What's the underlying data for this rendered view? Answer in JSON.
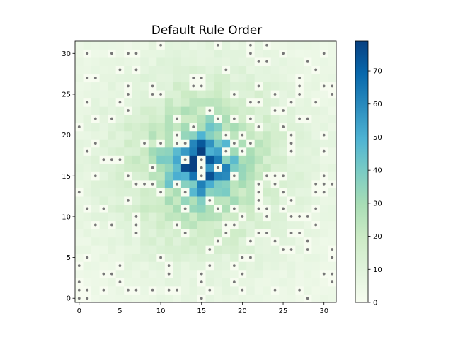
{
  "chart_data": {
    "type": "heatmap",
    "title": "Default Rule Order",
    "xlabel": "",
    "ylabel": "",
    "grid": false,
    "size": 32,
    "xlim": [
      -0.5,
      31.5
    ],
    "ylim": [
      -0.5,
      31.5
    ],
    "x_ticks": [
      0,
      5,
      10,
      15,
      20,
      25,
      30
    ],
    "y_ticks": [
      0,
      5,
      10,
      15,
      20,
      25,
      30
    ],
    "colorbar": {
      "min": 0,
      "max": 79,
      "ticks": [
        0,
        10,
        20,
        30,
        40,
        50,
        60,
        70
      ],
      "colormap": "GnBu",
      "stops": [
        "#f7fcf0",
        "#e0f3db",
        "#ccebc5",
        "#a8ddb5",
        "#7bccc4",
        "#4eb3d3",
        "#2b8cbe",
        "#0868ac",
        "#084081"
      ]
    },
    "peak": {
      "x": 15,
      "y": 16.5,
      "value": 79
    },
    "marker_color": "#777777",
    "markers": [
      [
        1,
        30
      ],
      [
        4,
        30
      ],
      [
        6,
        30
      ],
      [
        7,
        30
      ],
      [
        10,
        31
      ],
      [
        17,
        31
      ],
      [
        21,
        31
      ],
      [
        21,
        30
      ],
      [
        23,
        31
      ],
      [
        25,
        30
      ],
      [
        22,
        29
      ],
      [
        23,
        29
      ],
      [
        30,
        30
      ],
      [
        28,
        29
      ],
      [
        5,
        28
      ],
      [
        7,
        28
      ],
      [
        18,
        28
      ],
      [
        29,
        28
      ],
      [
        1,
        27
      ],
      [
        2,
        27
      ],
      [
        14,
        27
      ],
      [
        15,
        27
      ],
      [
        27,
        27
      ],
      [
        6,
        26
      ],
      [
        9,
        26
      ],
      [
        14,
        26
      ],
      [
        15,
        26
      ],
      [
        22,
        26
      ],
      [
        27,
        26
      ],
      [
        30,
        26
      ],
      [
        31,
        26
      ],
      [
        6,
        25
      ],
      [
        9,
        25
      ],
      [
        10,
        25
      ],
      [
        19,
        25
      ],
      [
        24,
        25
      ],
      [
        27,
        25
      ],
      [
        31,
        25
      ],
      [
        1,
        24
      ],
      [
        5,
        24
      ],
      [
        21,
        24
      ],
      [
        22,
        24
      ],
      [
        26,
        24
      ],
      [
        29,
        24
      ],
      [
        6,
        23
      ],
      [
        16,
        23
      ],
      [
        24,
        23
      ],
      [
        25,
        23
      ],
      [
        2,
        22
      ],
      [
        4,
        22
      ],
      [
        12,
        22
      ],
      [
        17,
        22
      ],
      [
        19,
        22
      ],
      [
        21,
        22
      ],
      [
        27,
        22
      ],
      [
        28,
        22
      ],
      [
        0,
        21
      ],
      [
        14,
        21
      ],
      [
        22,
        21
      ],
      [
        25,
        21
      ],
      [
        12,
        20
      ],
      [
        18,
        20
      ],
      [
        20,
        20
      ],
      [
        26,
        20
      ],
      [
        30,
        20
      ],
      [
        2,
        19
      ],
      [
        8,
        19
      ],
      [
        10,
        19
      ],
      [
        12,
        19
      ],
      [
        13,
        19
      ],
      [
        19,
        19
      ],
      [
        21,
        19
      ],
      [
        26,
        19
      ],
      [
        1,
        18
      ],
      [
        18,
        18
      ],
      [
        20,
        18
      ],
      [
        26,
        18
      ],
      [
        30,
        18
      ],
      [
        3,
        17
      ],
      [
        4,
        17
      ],
      [
        5,
        17
      ],
      [
        13,
        17
      ],
      [
        15,
        17
      ],
      [
        9,
        16
      ],
      [
        15,
        16
      ],
      [
        17,
        16
      ],
      [
        2,
        15
      ],
      [
        6,
        15
      ],
      [
        15,
        15
      ],
      [
        19,
        15
      ],
      [
        23,
        15
      ],
      [
        24,
        15
      ],
      [
        25,
        15
      ],
      [
        30,
        15
      ],
      [
        12,
        14
      ],
      [
        7,
        14
      ],
      [
        8,
        14
      ],
      [
        9,
        14
      ],
      [
        22,
        14
      ],
      [
        24,
        14
      ],
      [
        30,
        14
      ],
      [
        29,
        14
      ],
      [
        31,
        14
      ],
      [
        10,
        13
      ],
      [
        13,
        13
      ],
      [
        22,
        13
      ],
      [
        25,
        13
      ],
      [
        29,
        13
      ],
      [
        30,
        13
      ],
      [
        0,
        13
      ],
      [
        6,
        12
      ],
      [
        16,
        12
      ],
      [
        22,
        12
      ],
      [
        26,
        12
      ],
      [
        1,
        11
      ],
      [
        3,
        11
      ],
      [
        13,
        11
      ],
      [
        17,
        11
      ],
      [
        19,
        11
      ],
      [
        22,
        11
      ],
      [
        23,
        11
      ],
      [
        25,
        11
      ],
      [
        29,
        11
      ],
      [
        7,
        10
      ],
      [
        20,
        10
      ],
      [
        23,
        10
      ],
      [
        26,
        10
      ],
      [
        27,
        10
      ],
      [
        28,
        10
      ],
      [
        2,
        9
      ],
      [
        4,
        9
      ],
      [
        7,
        9
      ],
      [
        12,
        9
      ],
      [
        18,
        9
      ],
      [
        19,
        9
      ],
      [
        29,
        9
      ],
      [
        7,
        8
      ],
      [
        13,
        8
      ],
      [
        18,
        8
      ],
      [
        22,
        8
      ],
      [
        23,
        8
      ],
      [
        26,
        8
      ],
      [
        27,
        8
      ],
      [
        17,
        7
      ],
      [
        21,
        7
      ],
      [
        24,
        7
      ],
      [
        28,
        7
      ],
      [
        16,
        6
      ],
      [
        25,
        6
      ],
      [
        26,
        6
      ],
      [
        28,
        6
      ],
      [
        31,
        6
      ],
      [
        1,
        5
      ],
      [
        10,
        5
      ],
      [
        20,
        5
      ],
      [
        21,
        5
      ],
      [
        31,
        5
      ],
      [
        0,
        4
      ],
      [
        5,
        4
      ],
      [
        11,
        4
      ],
      [
        16,
        4
      ],
      [
        19,
        4
      ],
      [
        3,
        3
      ],
      [
        4,
        3
      ],
      [
        11,
        3
      ],
      [
        15,
        3
      ],
      [
        20,
        3
      ],
      [
        30,
        3
      ],
      [
        31,
        3
      ],
      [
        0,
        2
      ],
      [
        5,
        2
      ],
      [
        15,
        2
      ],
      [
        19,
        2
      ],
      [
        31,
        2
      ],
      [
        0,
        1
      ],
      [
        1,
        1
      ],
      [
        3,
        1
      ],
      [
        6,
        1
      ],
      [
        7,
        1
      ],
      [
        9,
        1
      ],
      [
        11,
        1
      ],
      [
        12,
        1
      ],
      [
        16,
        1
      ],
      [
        20,
        1
      ],
      [
        24,
        1
      ],
      [
        27,
        1
      ],
      [
        0,
        0
      ],
      [
        1,
        0
      ],
      [
        15,
        0
      ],
      [
        28,
        0
      ]
    ]
  }
}
